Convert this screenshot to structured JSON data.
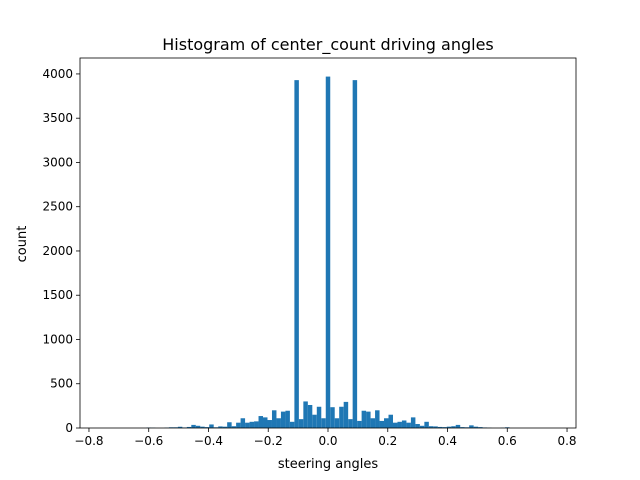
{
  "chart_data": {
    "type": "bar",
    "title": "Histogram of center_count driving angles",
    "xlabel": "steering angles",
    "ylabel": "count",
    "xlim": [
      -0.83,
      0.83
    ],
    "ylim": [
      0,
      4180
    ],
    "xticks": [
      -0.8,
      -0.6,
      -0.4,
      -0.2,
      0.0,
      0.2,
      0.4,
      0.6,
      0.8
    ],
    "xtick_labels": [
      "−0.8",
      "−0.6",
      "−0.4",
      "−0.2",
      "0.0",
      "0.2",
      "0.4",
      "0.6",
      "0.8"
    ],
    "yticks": [
      0,
      500,
      1000,
      1500,
      2000,
      2500,
      3000,
      3500,
      4000
    ],
    "ytick_labels": [
      "0",
      "500",
      "1000",
      "1500",
      "2000",
      "2500",
      "3000",
      "3500",
      "4000"
    ],
    "bin_width": 0.015,
    "bar_color": "#1f77b4",
    "bins": [
      {
        "x": -0.6,
        "count": 5
      },
      {
        "x": -0.585,
        "count": 3
      },
      {
        "x": -0.54,
        "count": 4
      },
      {
        "x": -0.525,
        "count": 8
      },
      {
        "x": -0.51,
        "count": 8
      },
      {
        "x": -0.495,
        "count": 14
      },
      {
        "x": -0.48,
        "count": 6
      },
      {
        "x": -0.465,
        "count": 12
      },
      {
        "x": -0.45,
        "count": 35
      },
      {
        "x": -0.435,
        "count": 25
      },
      {
        "x": -0.42,
        "count": 15
      },
      {
        "x": -0.405,
        "count": 10
      },
      {
        "x": -0.39,
        "count": 40
      },
      {
        "x": -0.375,
        "count": 8
      },
      {
        "x": -0.36,
        "count": 18
      },
      {
        "x": -0.345,
        "count": 15
      },
      {
        "x": -0.33,
        "count": 65
      },
      {
        "x": -0.315,
        "count": 20
      },
      {
        "x": -0.3,
        "count": 60
      },
      {
        "x": -0.285,
        "count": 110
      },
      {
        "x": -0.27,
        "count": 60
      },
      {
        "x": -0.255,
        "count": 70
      },
      {
        "x": -0.24,
        "count": 75
      },
      {
        "x": -0.225,
        "count": 135
      },
      {
        "x": -0.21,
        "count": 120
      },
      {
        "x": -0.195,
        "count": 90
      },
      {
        "x": -0.18,
        "count": 200
      },
      {
        "x": -0.165,
        "count": 110
      },
      {
        "x": -0.15,
        "count": 185
      },
      {
        "x": -0.135,
        "count": 195
      },
      {
        "x": -0.12,
        "count": 70
      },
      {
        "x": -0.105,
        "count": 3930
      },
      {
        "x": -0.09,
        "count": 100
      },
      {
        "x": -0.075,
        "count": 300
      },
      {
        "x": -0.06,
        "count": 260
      },
      {
        "x": -0.045,
        "count": 150
      },
      {
        "x": -0.03,
        "count": 240
      },
      {
        "x": -0.015,
        "count": 110
      },
      {
        "x": 0.0,
        "count": 3970
      },
      {
        "x": 0.015,
        "count": 235
      },
      {
        "x": 0.03,
        "count": 110
      },
      {
        "x": 0.045,
        "count": 240
      },
      {
        "x": 0.06,
        "count": 295
      },
      {
        "x": 0.075,
        "count": 100
      },
      {
        "x": 0.09,
        "count": 3930
      },
      {
        "x": 0.105,
        "count": 80
      },
      {
        "x": 0.12,
        "count": 195
      },
      {
        "x": 0.135,
        "count": 185
      },
      {
        "x": 0.15,
        "count": 110
      },
      {
        "x": 0.165,
        "count": 200
      },
      {
        "x": 0.18,
        "count": 80
      },
      {
        "x": 0.195,
        "count": 110
      },
      {
        "x": 0.21,
        "count": 150
      },
      {
        "x": 0.225,
        "count": 60
      },
      {
        "x": 0.24,
        "count": 70
      },
      {
        "x": 0.255,
        "count": 85
      },
      {
        "x": 0.27,
        "count": 60
      },
      {
        "x": 0.285,
        "count": 120
      },
      {
        "x": 0.3,
        "count": 45
      },
      {
        "x": 0.315,
        "count": 25
      },
      {
        "x": 0.33,
        "count": 70
      },
      {
        "x": 0.345,
        "count": 20
      },
      {
        "x": 0.36,
        "count": 18
      },
      {
        "x": 0.375,
        "count": 12
      },
      {
        "x": 0.39,
        "count": 10
      },
      {
        "x": 0.405,
        "count": 15
      },
      {
        "x": 0.42,
        "count": 20
      },
      {
        "x": 0.435,
        "count": 35
      },
      {
        "x": 0.45,
        "count": 10
      },
      {
        "x": 0.465,
        "count": 8
      },
      {
        "x": 0.48,
        "count": 30
      },
      {
        "x": 0.495,
        "count": 15
      },
      {
        "x": 0.51,
        "count": 10
      },
      {
        "x": 0.525,
        "count": 6
      },
      {
        "x": 0.54,
        "count": 3
      },
      {
        "x": 0.585,
        "count": 3
      },
      {
        "x": 0.6,
        "count": 8
      }
    ]
  }
}
